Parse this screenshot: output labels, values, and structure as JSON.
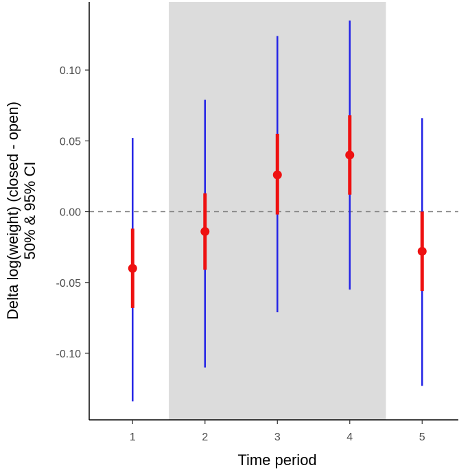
{
  "chart_data": {
    "type": "scatter",
    "subtype": "point-range",
    "xlabel": "Time period",
    "ylabel": [
      "Delta log(weight) (closed - open)",
      "50% & 95% CI"
    ],
    "x_categories": [
      "1",
      "2",
      "3",
      "4",
      "5"
    ],
    "y_ticks": [
      0.1,
      0.05,
      0.0,
      -0.05,
      -0.1
    ],
    "y_tick_labels": [
      "0.10",
      "0.05",
      "0.00",
      "-0.05",
      "-0.10"
    ],
    "ylim": [
      -0.147,
      0.148
    ],
    "xlim": [
      0.4,
      5.5
    ],
    "grid": false,
    "shaded_region": {
      "x_from": 1.5,
      "x_to": 4.5,
      "color": "#dcdcdc"
    },
    "reference_line": {
      "y": 0.0,
      "style": "dashed",
      "color": "#808080"
    },
    "points": [
      {
        "x": "1",
        "estimate": -0.04,
        "ci50": [
          -0.068,
          -0.012
        ],
        "ci95": [
          -0.134,
          0.052
        ]
      },
      {
        "x": "2",
        "estimate": -0.014,
        "ci50": [
          -0.041,
          0.013
        ],
        "ci95": [
          -0.11,
          0.079
        ]
      },
      {
        "x": "3",
        "estimate": 0.026,
        "ci50": [
          -0.002,
          0.055
        ],
        "ci95": [
          -0.071,
          0.124
        ]
      },
      {
        "x": "4",
        "estimate": 0.04,
        "ci50": [
          0.012,
          0.068
        ],
        "ci95": [
          -0.055,
          0.135
        ]
      },
      {
        "x": "5",
        "estimate": -0.028,
        "ci50": [
          -0.056,
          0.0
        ],
        "ci95": [
          -0.123,
          0.066
        ]
      }
    ],
    "colors": {
      "ci95": "#2323e6",
      "ci50": "#ee1111",
      "point": "#ee1111",
      "axis": "#000000"
    }
  }
}
